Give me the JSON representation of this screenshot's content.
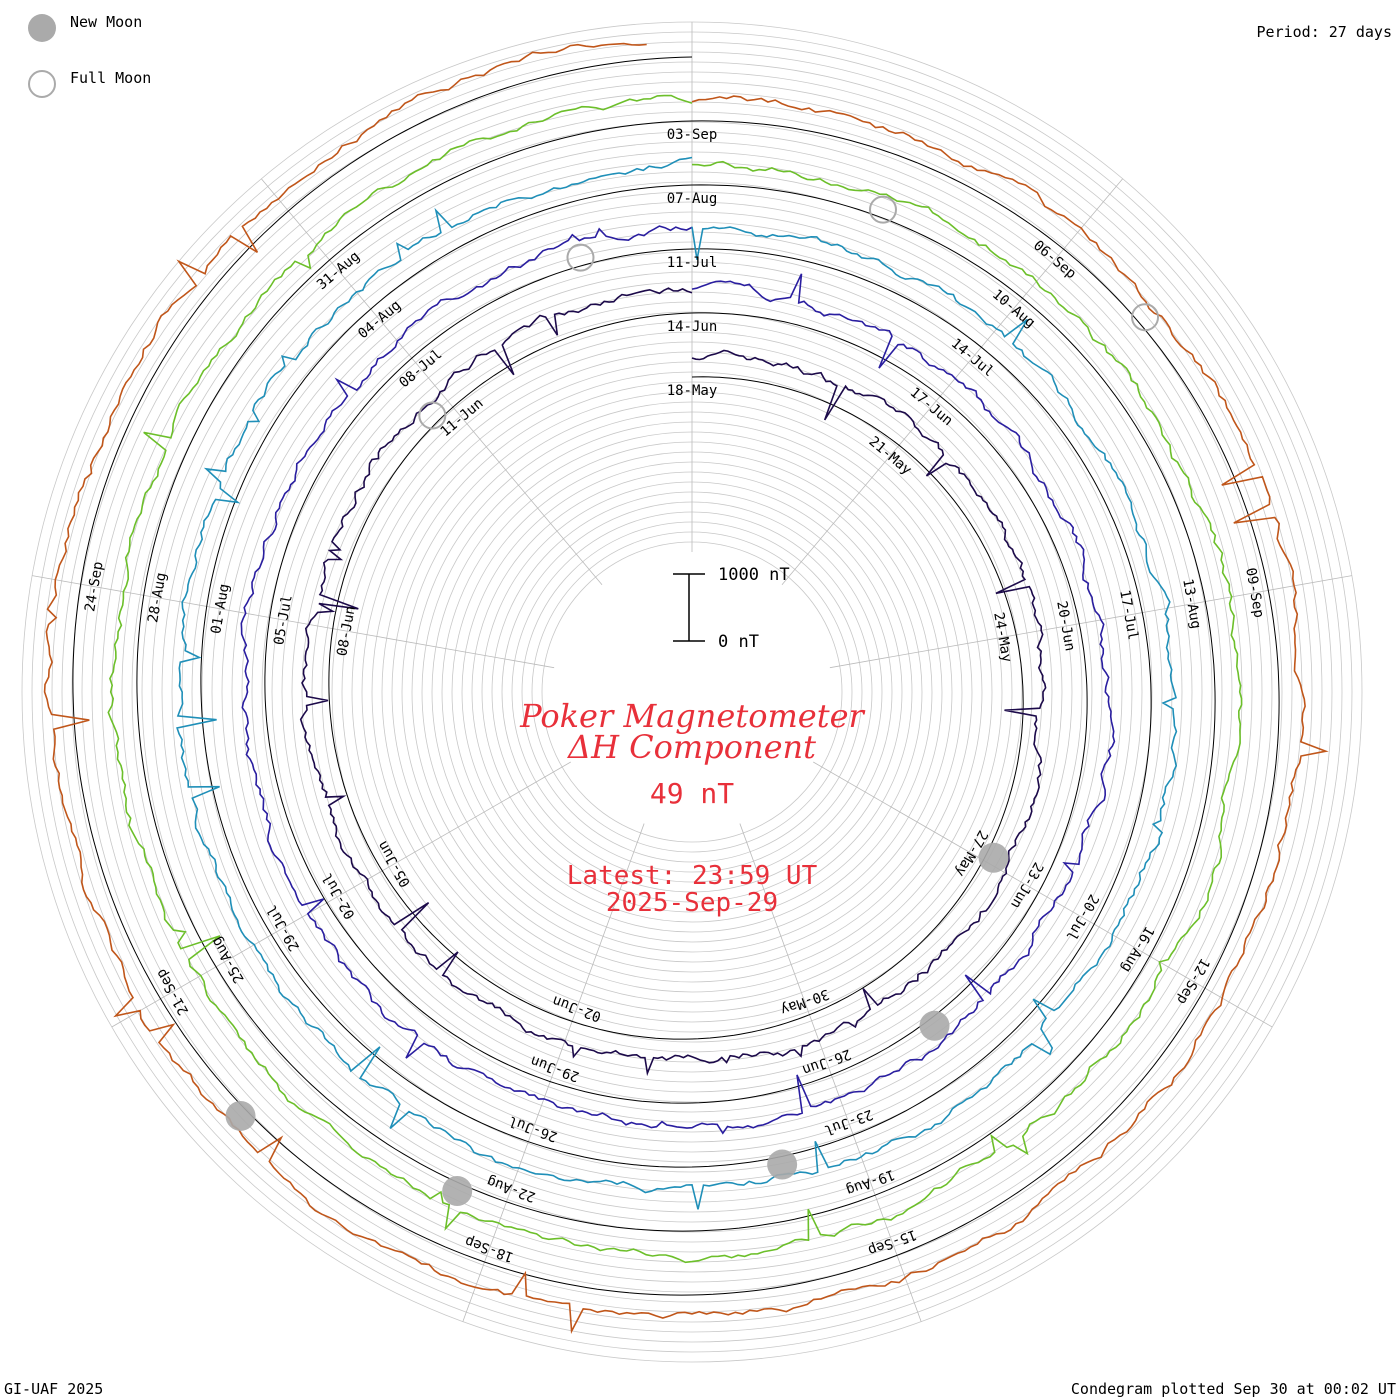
{
  "legend": {
    "new_moon_label": "New Moon",
    "full_moon_label": "Full Moon",
    "new_moon_color": "#aaaaaa",
    "full_moon_color": "#aaaaaa"
  },
  "period_label": "Period: 27 days",
  "footer": {
    "left": "GI-UAF 2025",
    "right": "Condegram plotted Sep 30 at 00:02 UT"
  },
  "title": {
    "line1": "Poker Magnetometer",
    "line2": "ΔH Component",
    "current_value": "49 nT",
    "latest_line1": "Latest: 23:59 UT",
    "latest_line2": "2025-Sep-29",
    "color": "#e8303a"
  },
  "scale_bar": {
    "top_label": "1000 nT",
    "bottom_label": "0 nT",
    "top_value": 1000,
    "bottom_value": 0
  },
  "chart_data": {
    "type": "line",
    "subtype": "condegram-spiral",
    "period_days": 27,
    "units": "nT",
    "grid": true,
    "turns": [
      {
        "index": 0,
        "color": "#1c0a4a",
        "date_labels": [
          "18-May",
          "21-May",
          "24-May",
          "27-May",
          "30-May",
          "02-Jun",
          "05-Jun",
          "08-Jun",
          "11-Jun"
        ]
      },
      {
        "index": 1,
        "color": "#2a1ea0",
        "date_labels": [
          "14-Jun",
          "17-Jun",
          "20-Jun",
          "23-Jun",
          "26-Jun",
          "29-Jun",
          "02-Jul",
          "05-Jul",
          "08-Jul"
        ]
      },
      {
        "index": 2,
        "color": "#1f8fb8",
        "date_labels": [
          "11-Jul",
          "14-Jul",
          "17-Jul",
          "20-Jul",
          "23-Jul",
          "26-Jul",
          "29-Jul",
          "01-Aug",
          "04-Aug"
        ]
      },
      {
        "index": 3,
        "color": "#6cbf2a",
        "date_labels": [
          "07-Aug",
          "10-Aug",
          "13-Aug",
          "16-Aug",
          "19-Aug",
          "22-Aug",
          "25-Aug",
          "28-Aug",
          "31-Aug"
        ]
      },
      {
        "index": 4,
        "color": "#c0561a",
        "date_labels": [
          "03-Sep",
          "06-Sep",
          "09-Sep",
          "12-Sep",
          "15-Sep",
          "18-Sep",
          "21-Sep",
          "24-Sep"
        ]
      }
    ],
    "new_moon_dates": [
      "27-May",
      "25-Jun",
      "24-Jul",
      "23-Aug",
      "21-Sep"
    ],
    "full_moon_dates": [
      "11-Jun",
      "10-Jul",
      "09-Aug",
      "07-Sep"
    ],
    "latest_value_nT": 49,
    "latest_time": "2025-Sep-29 23:59 UT"
  }
}
